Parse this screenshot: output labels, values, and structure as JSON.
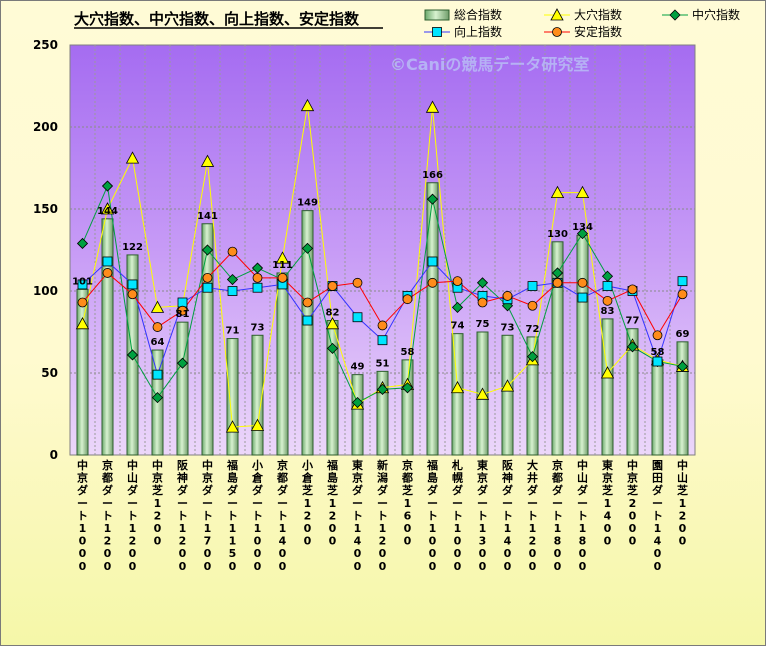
{
  "chart_data": {
    "type": "bar",
    "title": "大穴指数、中穴指数、向上指数、安定指数",
    "watermark": "©Caniの競馬データ研究室",
    "ylim": [
      0,
      250
    ],
    "yticks": [
      0,
      50,
      100,
      150,
      200,
      250
    ],
    "grid": true,
    "legend_placement": "top-right",
    "categories": [
      "中京ダート1000",
      "京都ダート1200",
      "中山ダート1200",
      "中京芝1200",
      "阪神ダート1200",
      "中京ダート1700",
      "福島ダート1150",
      "小倉ダート1000",
      "京都ダート1400",
      "小倉芝1200",
      "福島芝1200",
      "東京ダート1400",
      "新潟ダート1200",
      "京都芝1600",
      "福島ダート1000",
      "札幌ダート1000",
      "東京ダート1300",
      "阪神ダート1400",
      "大井ダート1200",
      "京都ダート1800",
      "中山ダート1800",
      "東京芝1400",
      "中京芝2000",
      "園田ダート1400",
      "中山芝1200"
    ],
    "series": [
      {
        "name": "総合指数",
        "kind": "bar",
        "color": "#a8d8a0",
        "values": [
          101,
          144,
          122,
          64,
          81,
          141,
          71,
          73,
          111,
          149,
          82,
          49,
          51,
          58,
          166,
          74,
          75,
          73,
          72,
          130,
          134,
          83,
          77,
          58,
          69
        ]
      },
      {
        "name": "大穴指数",
        "kind": "line",
        "marker": "triangle",
        "color": "#ffff00",
        "values": [
          80,
          150,
          181,
          90,
          91,
          179,
          17,
          18,
          120,
          213,
          80,
          31,
          41,
          43,
          212,
          41,
          37,
          42,
          58,
          160,
          160,
          50,
          67,
          58,
          54
        ]
      },
      {
        "name": "中穴指数",
        "kind": "line",
        "marker": "diamond",
        "color": "#00a040",
        "values": [
          129,
          164,
          61,
          35,
          56,
          125,
          107,
          114,
          107,
          126,
          65,
          32,
          40,
          41,
          156,
          90,
          105,
          91,
          60,
          111,
          135,
          109,
          66,
          57,
          54
        ]
      },
      {
        "name": "向上指数",
        "kind": "line",
        "marker": "square",
        "color": "#00e5ff",
        "values": [
          104,
          118,
          104,
          49,
          93,
          102,
          100,
          102,
          104,
          82,
          103,
          84,
          70,
          97,
          118,
          102,
          97,
          95,
          103,
          105,
          96,
          103,
          100,
          57,
          106
        ]
      },
      {
        "name": "安定指数",
        "kind": "line",
        "marker": "circle",
        "color": "#ff8c1a",
        "values": [
          93,
          111,
          98,
          78,
          88,
          108,
          124,
          108,
          108,
          93,
          103,
          105,
          79,
          95,
          105,
          106,
          93,
          97,
          91,
          105,
          105,
          94,
          101,
          73,
          98
        ]
      }
    ]
  },
  "colors": {
    "plot_top": "#a56cf1",
    "plot_mid": "#c79bf6",
    "plot_bottom": "#ecd7fa",
    "bar_fill": "#a8d8a0",
    "line_daana": "#ffff00",
    "line_chuana": "#00a040",
    "line_kojo": "#3434ff",
    "line_antei": "#ff0000"
  }
}
